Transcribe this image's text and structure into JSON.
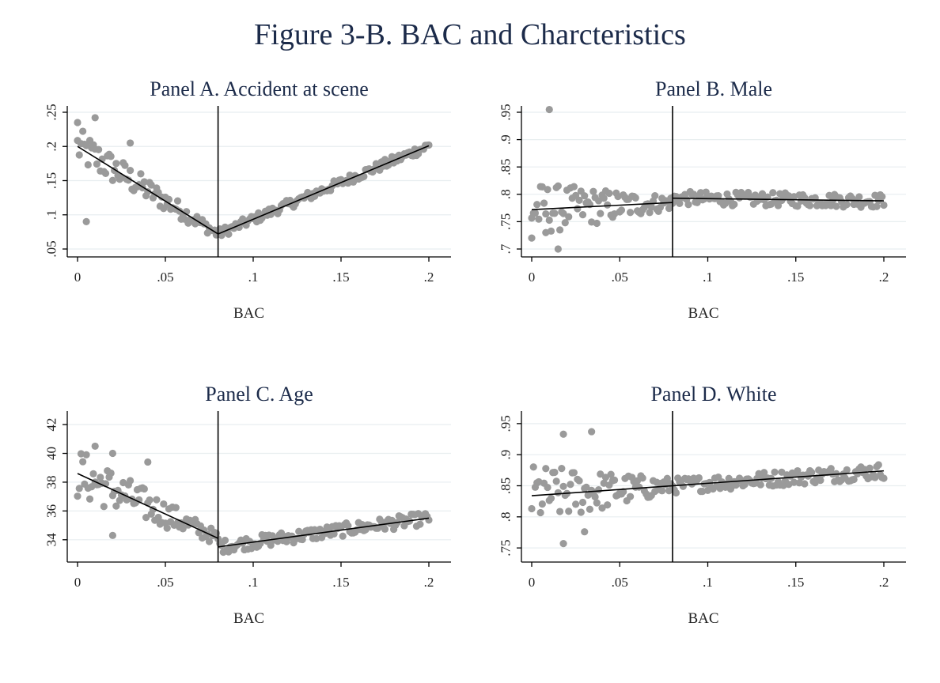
{
  "figure": {
    "title": "Figure 3-B. BAC and Charcteristics"
  },
  "colors": {
    "points": "#9a9a9a",
    "lines": "#000000",
    "title": "#1c2b4a",
    "grid": "#e8eef0"
  },
  "chart_data": [
    {
      "type": "scatter",
      "title": "Panel A. Accident at scene",
      "xlabel": "BAC",
      "ylabel": "",
      "xlim": [
        0,
        0.2
      ],
      "ylim": [
        0.05,
        0.25
      ],
      "xticks": [
        0,
        0.05,
        0.1,
        0.15,
        0.2
      ],
      "xtick_labels": [
        "0",
        ".05",
        ".1",
        ".15",
        ".2"
      ],
      "yticks": [
        0.05,
        0.1,
        0.15,
        0.2,
        0.25
      ],
      "ytick_labels": [
        ".05",
        ".1",
        ".15",
        ".2",
        ".25"
      ],
      "grid": true,
      "cutoff": 0.08,
      "fit": [
        {
          "x": [
            0,
            0.08
          ],
          "y": [
            0.2,
            0.072
          ]
        },
        {
          "x": [
            0.08,
            0.2
          ],
          "y": [
            0.072,
            0.201
          ]
        }
      ],
      "noise": 0.028,
      "outliers": [
        [
          0.0,
          0.235
        ],
        [
          0.01,
          0.242
        ],
        [
          0.03,
          0.205
        ],
        [
          0.005,
          0.09
        ]
      ]
    },
    {
      "type": "scatter",
      "title": "Panel B. Male",
      "xlabel": "BAC",
      "ylabel": "",
      "xlim": [
        0,
        0.2
      ],
      "ylim": [
        0.7,
        0.95
      ],
      "xticks": [
        0,
        0.05,
        0.1,
        0.15,
        0.2
      ],
      "xtick_labels": [
        "0",
        ".05",
        ".1",
        ".15",
        ".2"
      ],
      "yticks": [
        0.7,
        0.75,
        0.8,
        0.85,
        0.9,
        0.95
      ],
      "ytick_labels": [
        ".7",
        ".75",
        ".8",
        ".85",
        ".9",
        ".95"
      ],
      "grid": true,
      "cutoff": 0.08,
      "fit": [
        {
          "x": [
            0,
            0.08
          ],
          "y": [
            0.772,
            0.785
          ]
        },
        {
          "x": [
            0.08,
            0.2
          ],
          "y": [
            0.793,
            0.788
          ]
        }
      ],
      "noise": 0.05,
      "outliers": [
        [
          0.01,
          0.955
        ],
        [
          0.015,
          0.7
        ],
        [
          0.008,
          0.73
        ],
        [
          0.0,
          0.72
        ]
      ]
    },
    {
      "type": "scatter",
      "title": "Panel C. Age",
      "xlabel": "BAC",
      "ylabel": "",
      "xlim": [
        0,
        0.2
      ],
      "ylim": [
        33,
        42.5
      ],
      "xticks": [
        0,
        0.05,
        0.1,
        0.15,
        0.2
      ],
      "xtick_labels": [
        "0",
        ".05",
        ".1",
        ".15",
        ".2"
      ],
      "yticks": [
        34,
        36,
        38,
        40,
        42
      ],
      "ytick_labels": [
        "34",
        "36",
        "38",
        "40",
        "42"
      ],
      "grid": true,
      "cutoff": 0.08,
      "fit": [
        {
          "x": [
            0,
            0.08
          ],
          "y": [
            38.6,
            34.1
          ]
        },
        {
          "x": [
            0.08,
            0.2
          ],
          "y": [
            33.5,
            35.5
          ]
        }
      ],
      "noise": 1.8,
      "outliers": [
        [
          0.01,
          40.5
        ],
        [
          0.02,
          40.0
        ],
        [
          0.04,
          39.4
        ],
        [
          0.02,
          34.3
        ]
      ]
    },
    {
      "type": "scatter",
      "title": "Panel D. White",
      "xlabel": "BAC",
      "ylabel": "",
      "xlim": [
        0,
        0.2
      ],
      "ylim": [
        0.74,
        0.96
      ],
      "xticks": [
        0,
        0.05,
        0.1,
        0.15,
        0.2
      ],
      "xtick_labels": [
        "0",
        ".05",
        ".1",
        ".15",
        ".2"
      ],
      "yticks": [
        0.75,
        0.8,
        0.85,
        0.9,
        0.95
      ],
      "ytick_labels": [
        ".75",
        ".8",
        ".85",
        ".9",
        ".95"
      ],
      "grid": true,
      "cutoff": 0.08,
      "fit": [
        {
          "x": [
            0,
            0.2
          ],
          "y": [
            0.834,
            0.874
          ]
        }
      ],
      "noise": 0.05,
      "outliers": [
        [
          0.018,
          0.933
        ],
        [
          0.034,
          0.937
        ],
        [
          0.018,
          0.757
        ],
        [
          0.03,
          0.776
        ]
      ]
    }
  ]
}
